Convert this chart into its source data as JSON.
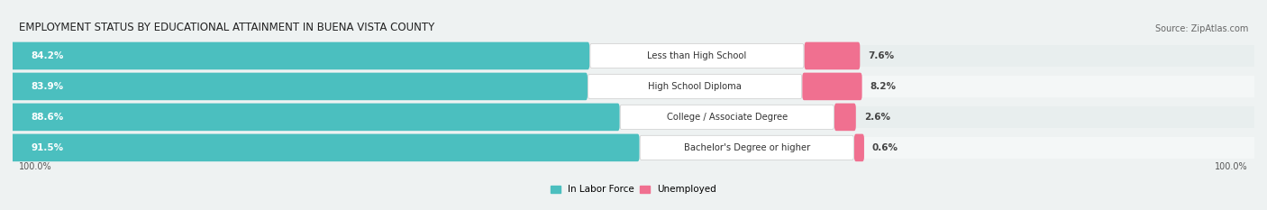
{
  "title": "EMPLOYMENT STATUS BY EDUCATIONAL ATTAINMENT IN BUENA VISTA COUNTY",
  "source": "Source: ZipAtlas.com",
  "categories": [
    "Less than High School",
    "High School Diploma",
    "College / Associate Degree",
    "Bachelor's Degree or higher"
  ],
  "labor_force": [
    84.2,
    83.9,
    88.6,
    91.5
  ],
  "unemployed": [
    7.6,
    8.2,
    2.6,
    0.6
  ],
  "labor_force_color": "#4BBFBF",
  "unemployed_color": "#F07090",
  "bg_color": "#EEF2F2",
  "row_bg_even": "#E8EEEE",
  "row_bg_odd": "#F4F7F7",
  "title_fontsize": 8.5,
  "source_fontsize": 7.0,
  "label_fontsize": 7.2,
  "value_fontsize": 7.5,
  "legend_fontsize": 7.5,
  "axis_label_fontsize": 7.0,
  "x_left_label": "100.0%",
  "x_right_label": "100.0%"
}
